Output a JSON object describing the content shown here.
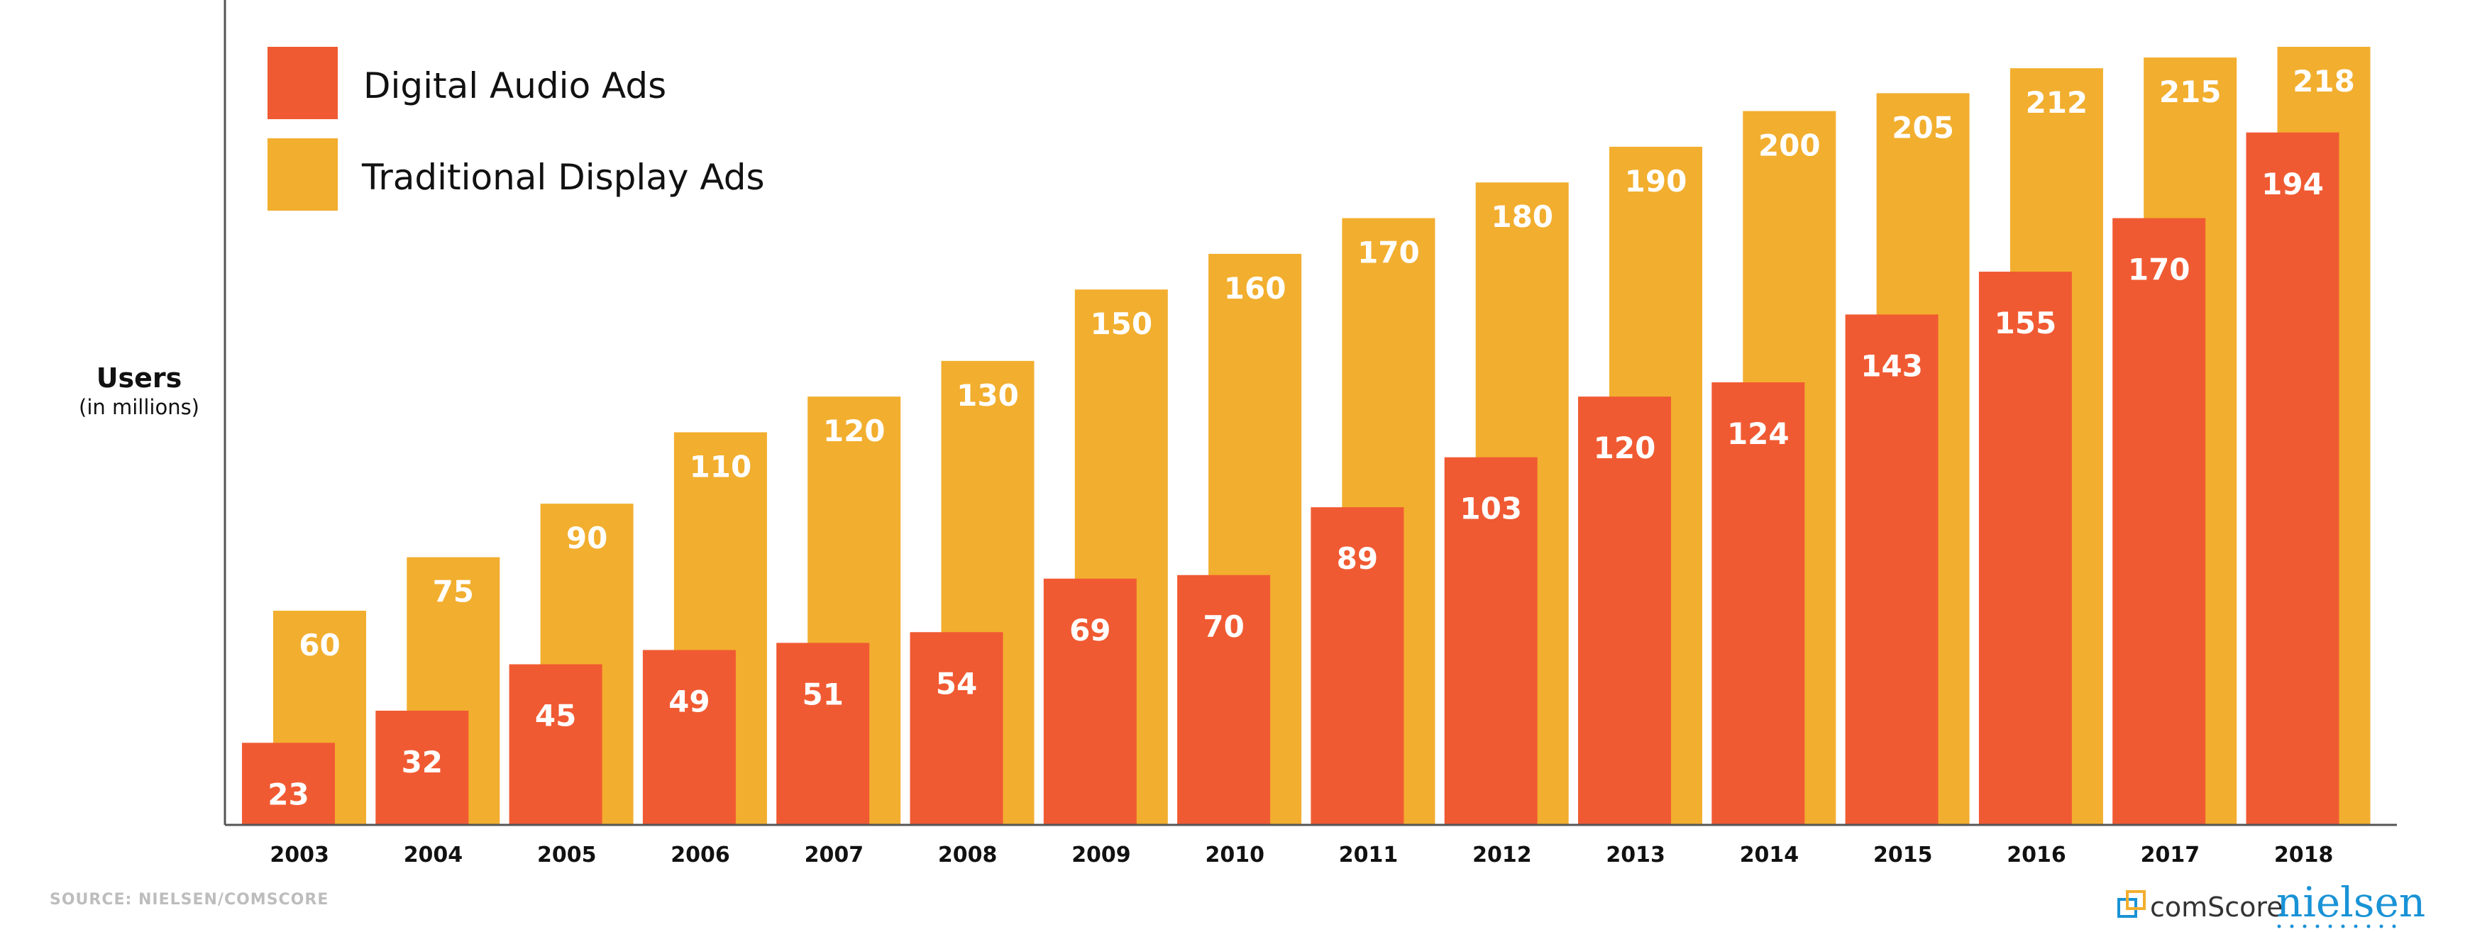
{
  "chart_data": {
    "type": "bar",
    "categories": [
      "2003",
      "2004",
      "2005",
      "2006",
      "2007",
      "2008",
      "2009",
      "2010",
      "2011",
      "2012",
      "2013",
      "2014",
      "2015",
      "2016",
      "2017",
      "2018"
    ],
    "series": [
      {
        "name": "Traditional Display Ads",
        "color": "#F2AE2E",
        "values": [
          60,
          75,
          90,
          110,
          120,
          130,
          150,
          160,
          170,
          180,
          190,
          200,
          205,
          212,
          215,
          218
        ]
      },
      {
        "name": "Digital Audio Ads",
        "color": "#F05A32",
        "values": [
          23,
          32,
          45,
          49,
          51,
          54,
          69,
          70,
          89,
          103,
          120,
          124,
          143,
          155,
          170,
          194
        ]
      }
    ],
    "ylabel": "Users",
    "ylabel_sub": "(in millions)",
    "xlabel": "",
    "title": "",
    "ylim": [
      0,
      225
    ],
    "grid": false,
    "legend": {
      "position": "top-left",
      "order": [
        "Digital Audio Ads",
        "Traditional Display Ads"
      ]
    }
  },
  "source": "SOURCE: NIELSEN/COMSCORE",
  "logos": {
    "comscore": "comScore",
    "nielsen": "nielsen"
  },
  "colors": {
    "audio": "#F05A32",
    "display": "#F2AE2E",
    "axis": "#555555"
  }
}
